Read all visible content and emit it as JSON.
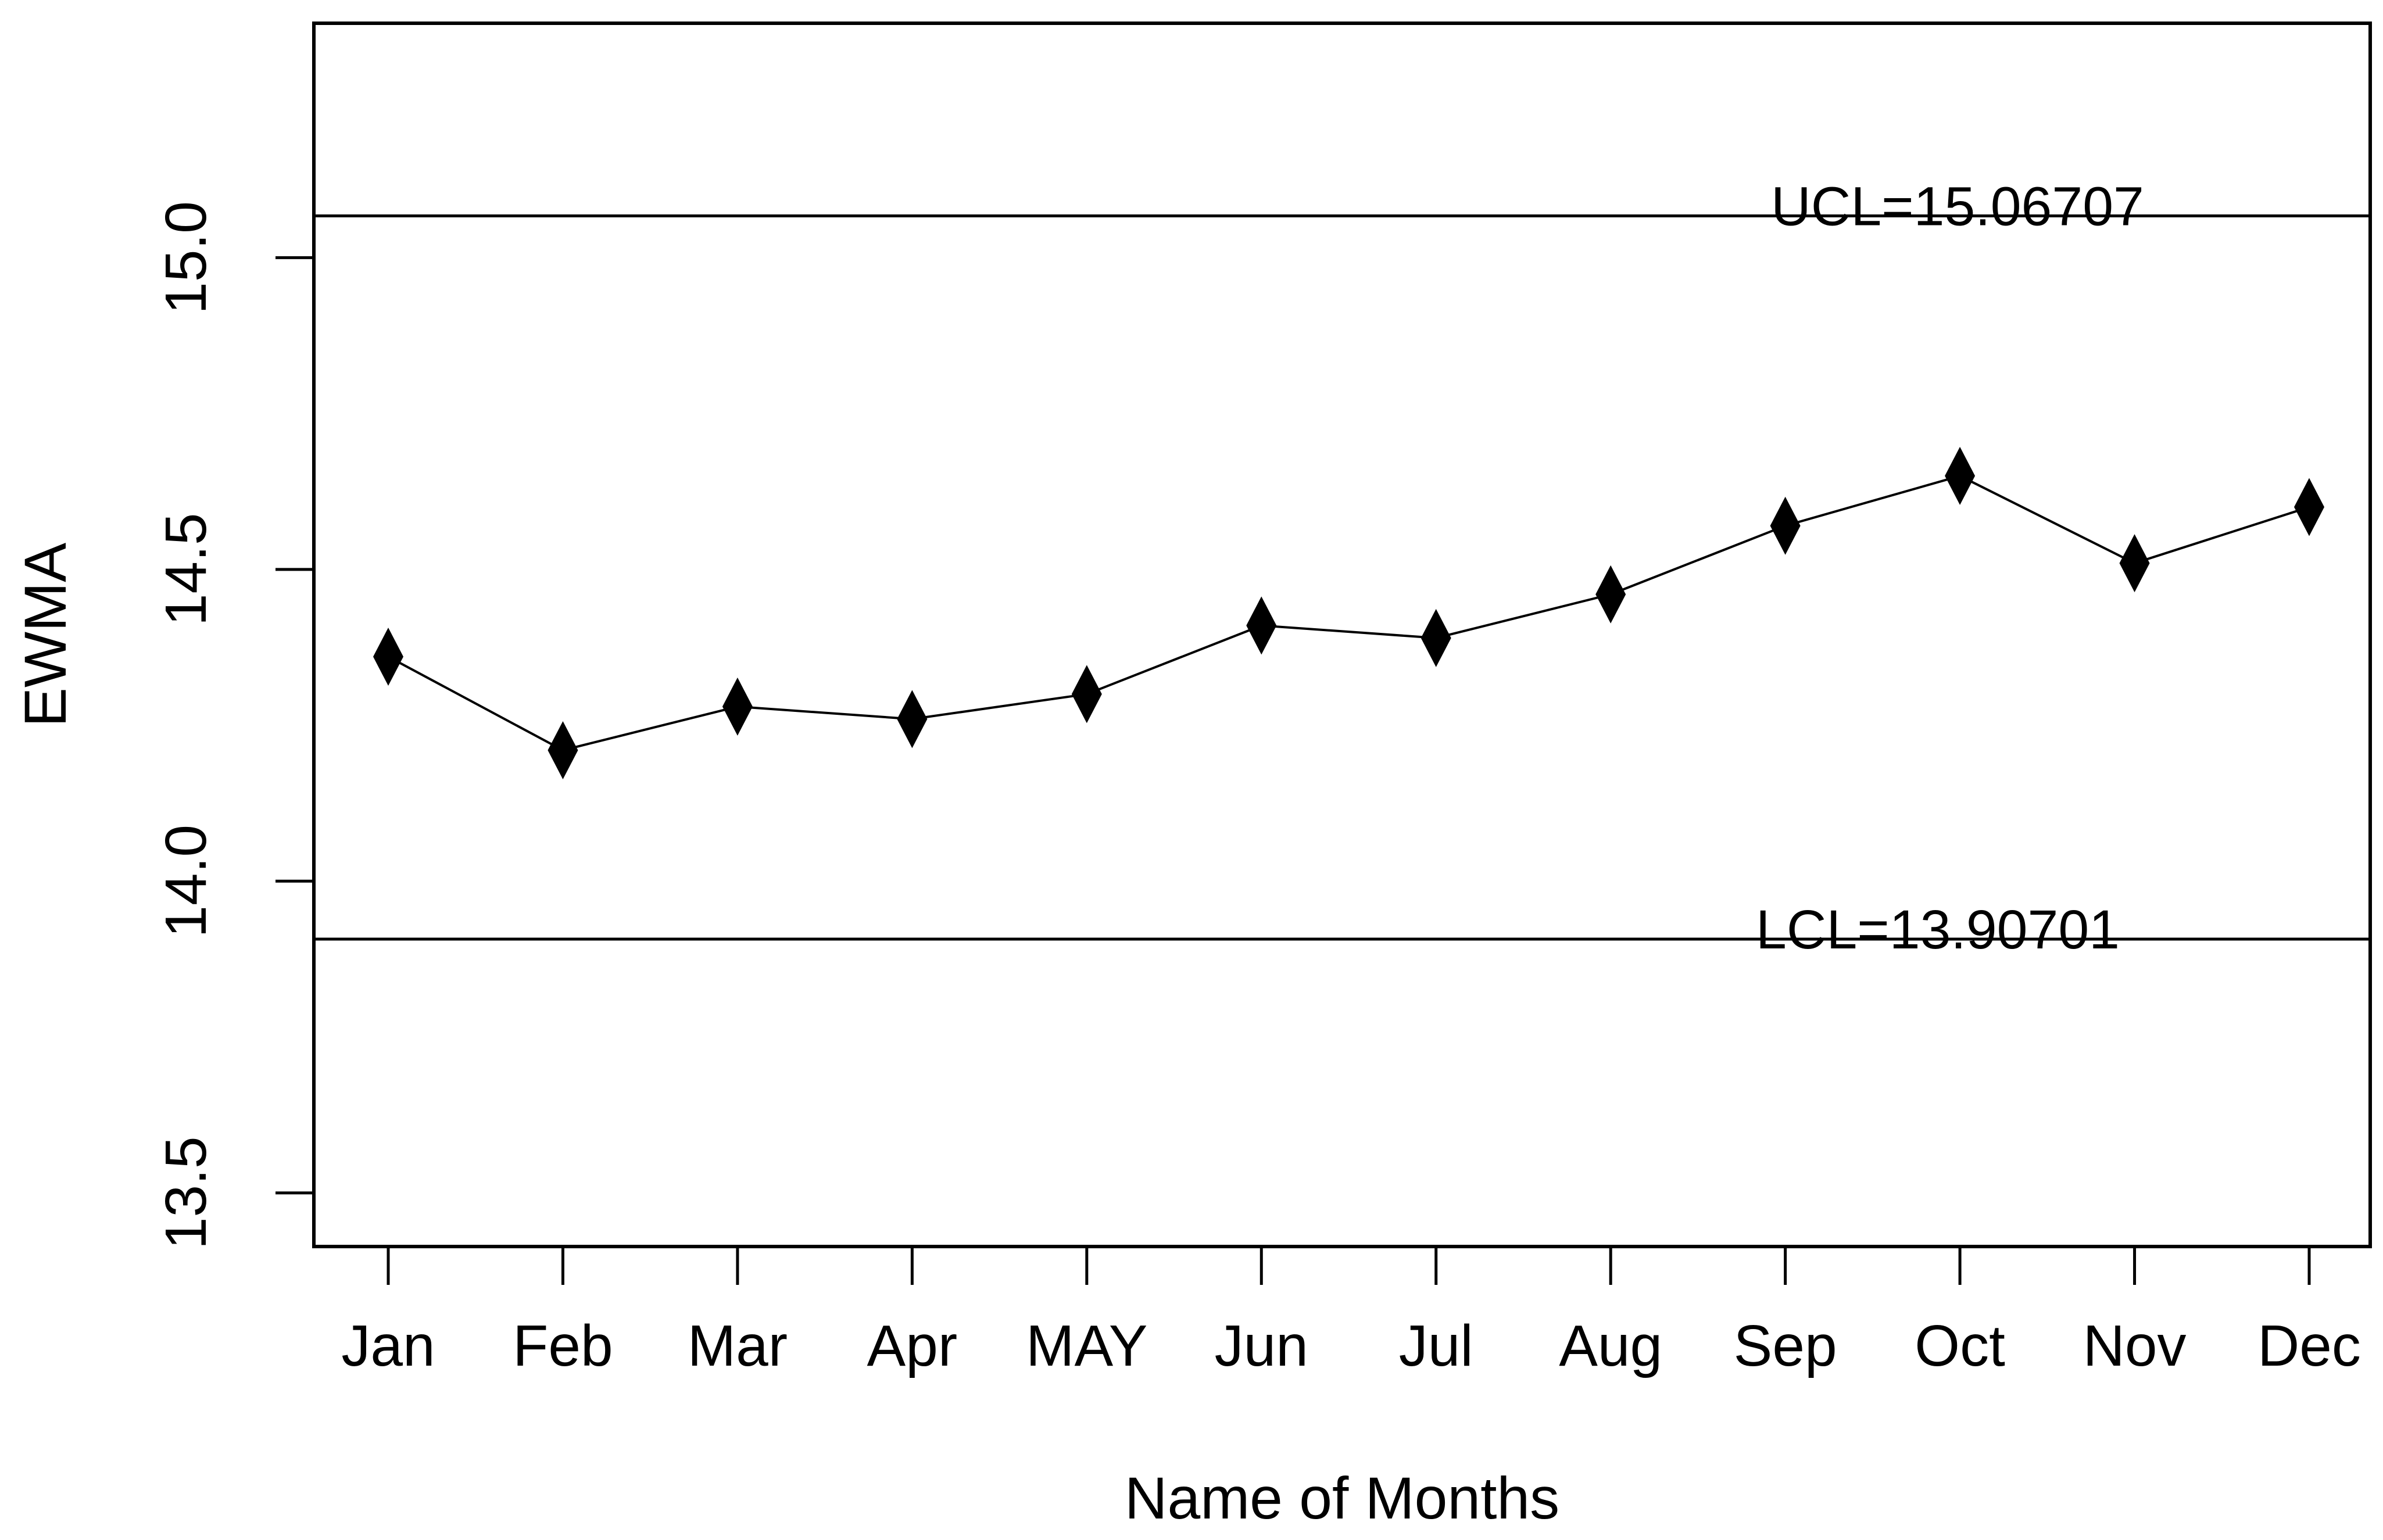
{
  "chart_data": {
    "type": "line",
    "title": "",
    "xlabel": "Name of Months",
    "ylabel": "EWMA",
    "categories": [
      "Jan",
      "Feb",
      "Mar",
      "Apr",
      "MAY",
      "Jun",
      "Jul",
      "Aug",
      "Sep",
      "Oct",
      "Nov",
      "Dec"
    ],
    "series": [
      {
        "name": "EWMA",
        "values": [
          14.36,
          14.21,
          14.28,
          14.26,
          14.3,
          14.41,
          14.39,
          14.46,
          14.57,
          14.65,
          14.51,
          14.6
        ]
      }
    ],
    "control_limits": {
      "ucl": {
        "label": "UCL=15.06707",
        "value": 15.06707
      },
      "lcl": {
        "label": "LCL=13.90701",
        "value": 13.90701
      }
    },
    "yticks": [
      13.5,
      14.0,
      14.5,
      15.0
    ],
    "ytick_labels": [
      "13.5",
      "14.0",
      "14.5",
      "15.0"
    ],
    "ylim": [
      13.414,
      15.376
    ],
    "grid": false,
    "legend": "none",
    "marker": "filled-diamond",
    "line_color": "#000000",
    "background_color": "#ffffff"
  }
}
